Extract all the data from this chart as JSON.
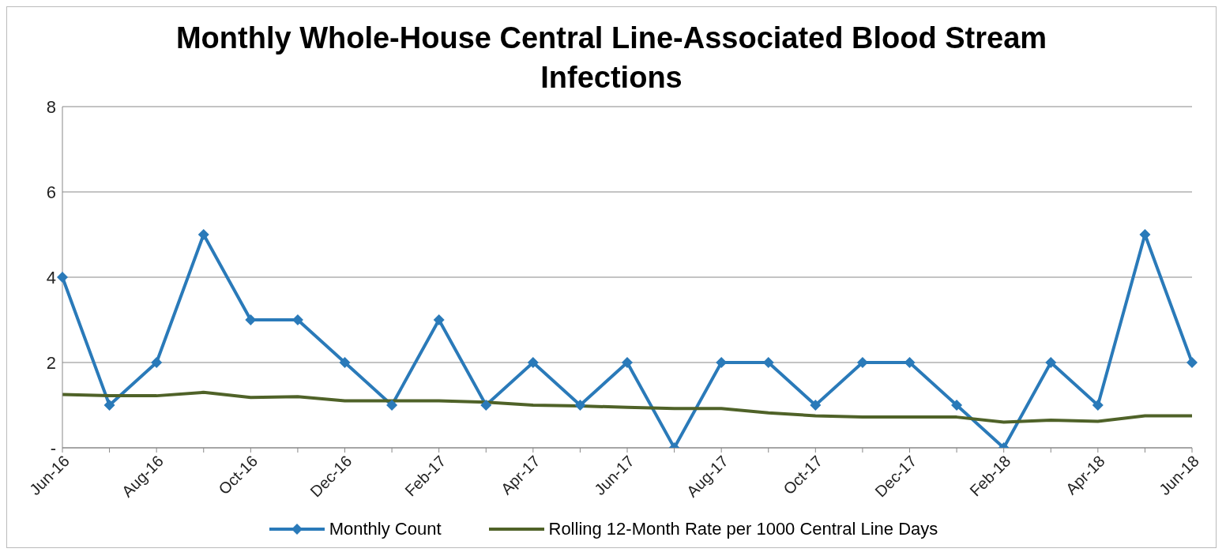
{
  "chart_data": {
    "type": "line",
    "title": "Monthly Whole-House Central Line-Associated Blood Stream Infections",
    "categories": [
      "Jun-16",
      null,
      "Aug-16",
      null,
      "Oct-16",
      null,
      "Dec-16",
      null,
      "Feb-17",
      null,
      "Apr-17",
      null,
      "Jun-17",
      null,
      "Aug-17",
      null,
      "Oct-17",
      null,
      "Dec-17",
      null,
      "Feb-18",
      null,
      "Apr-18",
      null,
      "Jun-18"
    ],
    "series": [
      {
        "name": "Monthly Count",
        "color": "#2a7ab9",
        "marker": "diamond",
        "values": [
          4,
          1,
          2,
          5,
          3,
          3,
          2,
          1,
          3,
          1,
          2,
          1,
          2,
          0,
          2,
          2,
          1,
          2,
          2,
          1,
          0,
          2,
          1,
          5,
          2
        ]
      },
      {
        "name": "Rolling 12-Month Rate per 1000 Central Line Days",
        "color": "#4f6228",
        "marker": "none",
        "values": [
          1.25,
          1.22,
          1.22,
          1.3,
          1.18,
          1.2,
          1.1,
          1.1,
          1.1,
          1.07,
          1.0,
          0.98,
          0.95,
          0.92,
          0.92,
          0.82,
          0.75,
          0.72,
          0.72,
          0.72,
          0.6,
          0.65,
          0.62,
          0.75,
          0.75
        ]
      }
    ],
    "ylim": [
      0,
      8
    ],
    "yticks": [
      {
        "value": 0,
        "label": "-"
      },
      2,
      4,
      6,
      8
    ],
    "grid": "y",
    "legend": "bottom"
  }
}
